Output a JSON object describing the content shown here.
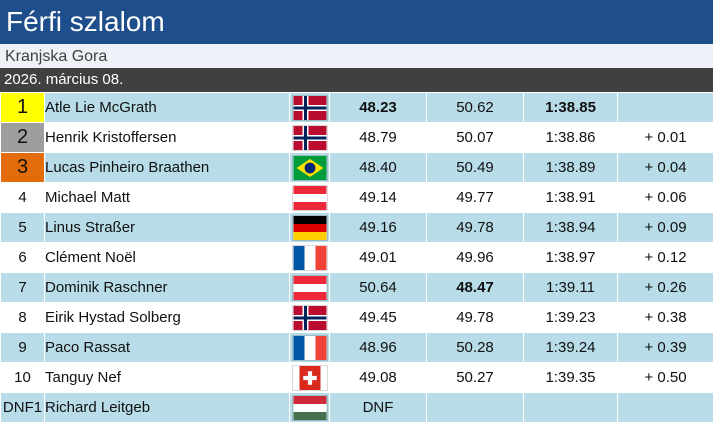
{
  "header": {
    "title": "Férfi szlalom"
  },
  "location": "Kranjska Gora",
  "date": "2026. március 08.",
  "results": [
    {
      "rank": "1",
      "name": "Atle Lie McGrath",
      "flag": "norway-flag-icon",
      "run1": "48.23",
      "run2": "50.62",
      "total": "1:38.85",
      "diff": ""
    },
    {
      "rank": "2",
      "name": "Henrik Kristoffersen",
      "flag": "norway-flag-icon",
      "run1": "48.79",
      "run2": "50.07",
      "total": "1:38.86",
      "diff": "+ 0.01"
    },
    {
      "rank": "3",
      "name": "Lucas Pinheiro Braathen",
      "flag": "brazil-flag-icon",
      "run1": "48.40",
      "run2": "50.49",
      "total": "1:38.89",
      "diff": "+ 0.04"
    },
    {
      "rank": "4",
      "name": "Michael Matt",
      "flag": "austria-flag-icon",
      "run1": "49.14",
      "run2": "49.77",
      "total": "1:38.91",
      "diff": "+ 0.06"
    },
    {
      "rank": "5",
      "name": "Linus Straßer",
      "flag": "germany-flag-icon",
      "run1": "49.16",
      "run2": "49.78",
      "total": "1:38.94",
      "diff": "+ 0.09"
    },
    {
      "rank": "6",
      "name": "Clément Noël",
      "flag": "france-flag-icon",
      "run1": "49.01",
      "run2": "49.96",
      "total": "1:38.97",
      "diff": "+ 0.12"
    },
    {
      "rank": "7",
      "name": "Dominik Raschner",
      "flag": "austria-flag-icon",
      "run1": "50.64",
      "run2": "48.47",
      "total": "1:39.11",
      "diff": "+ 0.26"
    },
    {
      "rank": "8",
      "name": "Eirik Hystad Solberg",
      "flag": "norway-flag-icon",
      "run1": "49.45",
      "run2": "49.78",
      "total": "1:39.23",
      "diff": "+ 0.38"
    },
    {
      "rank": "9",
      "name": "Paco Rassat",
      "flag": "france-flag-icon",
      "run1": "48.96",
      "run2": "50.28",
      "total": "1:39.24",
      "diff": "+ 0.39"
    },
    {
      "rank": "10",
      "name": "Tanguy Nef",
      "flag": "switzerland-flag-icon",
      "run1": "49.08",
      "run2": "50.27",
      "total": "1:39.35",
      "diff": "+ 0.50"
    },
    {
      "rank": "DNF1",
      "name": "Richard Leitgeb",
      "flag": "hungary-flag-icon",
      "run1": "DNF",
      "run2": "",
      "total": "",
      "diff": ""
    }
  ],
  "colors": {
    "header_bg": "#1f4e8c",
    "date_band_bg": "#404040",
    "row_alt_bg": "#b8dde8",
    "gold": "#ffff00",
    "silver": "#9e9e9e",
    "bronze": "#e26b0a"
  }
}
